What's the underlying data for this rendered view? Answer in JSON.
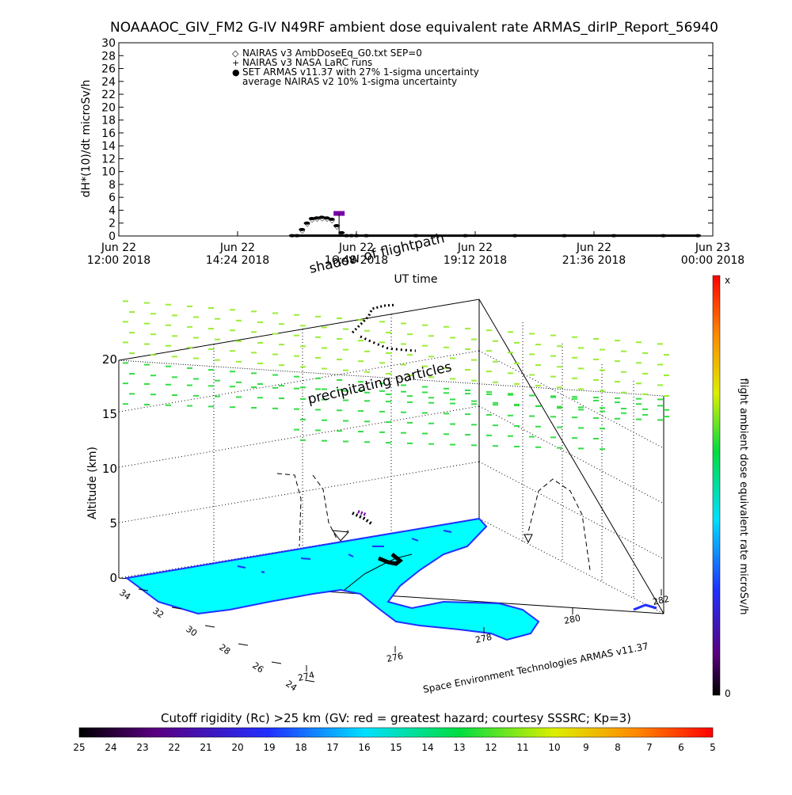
{
  "title": "NOAAAOC_GIV_FM2 G-IV   N49RF  ambient dose equivalent rate ARMAS_dirIP_Report_56940",
  "colors": {
    "set_armas": "#0000ff",
    "nairas_v2": "#7a00a8",
    "ground": "#00ffff",
    "coast": "#2040ff",
    "particles_green": "#33dd44",
    "particles_lime": "#99ee33"
  },
  "chart_data": [
    {
      "type": "scatter",
      "ylabel": "dH*(10)/dt microSv/h",
      "xlabel": "UT time",
      "ylim": [
        0,
        30
      ],
      "y_ticks": [
        "0",
        "2",
        "4",
        "6",
        "8",
        "10",
        "12",
        "14",
        "16",
        "18",
        "20",
        "22",
        "24",
        "26",
        "28",
        "30"
      ],
      "x_ticks": [
        {
          "line1": "Jun 22",
          "line2": "12:00 2018"
        },
        {
          "line1": "Jun 22",
          "line2": "14:24 2018"
        },
        {
          "line1": "Jun 22",
          "line2": "16:48 2018"
        },
        {
          "line1": "Jun 22",
          "line2": "19:12 2018"
        },
        {
          "line1": "Jun 22",
          "line2": "21:36 2018"
        },
        {
          "line1": "Jun 23",
          "line2": "00:00 2018"
        }
      ],
      "xlim_hours": [
        0,
        12
      ],
      "legend": [
        {
          "symbol": "◇",
          "label": "NAIRAS v3 AmbDoseEq_G0.txt SEP=0"
        },
        {
          "symbol": "+",
          "label": "NAIRAS v3 NASA LaRC runs"
        },
        {
          "symbol": "●",
          "label": "SET ARMAS v11.37 with 27% 1-sigma uncertainty"
        },
        {
          "symbol": "",
          "label": "average NAIRAS v2 10% 1-sigma uncertainty"
        }
      ],
      "series": [
        {
          "name": "SET ARMAS v11.37 with 27% 1-sigma uncertainty",
          "x_hours": [
            3.5,
            3.6,
            3.7,
            3.8,
            3.9,
            4.0,
            4.1,
            4.2,
            4.3,
            4.4,
            4.5,
            4.6,
            4.7,
            4.8,
            5.0,
            6.0,
            7.0,
            8.0,
            9.0,
            10.0,
            11.0,
            11.7
          ],
          "values": [
            0.05,
            0.05,
            1.0,
            2.0,
            2.7,
            2.8,
            2.9,
            2.8,
            2.6,
            1.6,
            0.5,
            0.05,
            0.05,
            0.05,
            0.05,
            0.05,
            0.05,
            0.05,
            0.05,
            0.05,
            0.05,
            0.05
          ]
        },
        {
          "name": "average NAIRAS v2 10% 1-sigma uncertainty",
          "x_hours": [
            4.45
          ],
          "values": [
            3.5
          ]
        }
      ]
    },
    {
      "type": "3d-flightpath",
      "zlabel": "Altitude (km)",
      "z_ticks": [
        "0",
        "5",
        "10",
        "15",
        "20"
      ],
      "lat_ticks": [
        "34",
        "32",
        "30",
        "28",
        "26",
        "24"
      ],
      "lon_ticks": [
        "274",
        "276",
        "278",
        "280",
        "282"
      ],
      "labels": {
        "shadow": "shadow of flightpath",
        "particles": "precipitating particles",
        "credit": "Space Environment Technologies ARMAS v11.37"
      },
      "colorbar": {
        "label": "flight ambient dose equivalent rate microSv/h",
        "top": "x",
        "bottom": "0"
      }
    },
    {
      "type": "colorbar",
      "title": "Cutoff rigidity (Rc) >25 km (GV: red = greatest hazard; courtesy SSSRC; Kp=3)",
      "ticks": [
        "25",
        "24",
        "23",
        "22",
        "21",
        "20",
        "19",
        "18",
        "17",
        "16",
        "15",
        "14",
        "13",
        "12",
        "11",
        "10",
        "9",
        "8",
        "7",
        "6",
        "5"
      ]
    }
  ]
}
